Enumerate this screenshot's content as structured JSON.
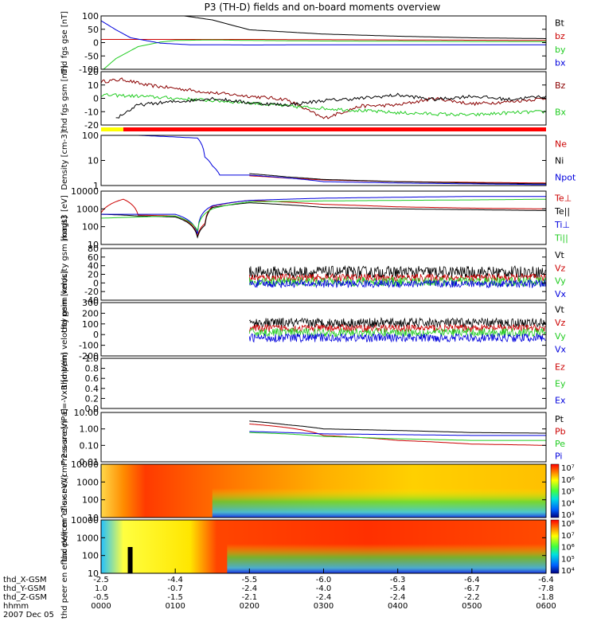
{
  "title": "P3 (TH-D) fields and on-board moments overview",
  "colors": {
    "black": "#000000",
    "red": "#cc0000",
    "darkred": "#8b0000",
    "green": "#22cc22",
    "blue": "#0000dd",
    "yellow": "#ffff00",
    "bar_red": "#ff0000"
  },
  "chart_data": [
    {
      "type": "line",
      "panel": "fgs-gse",
      "ylabel": "thd fgs gse [nT]",
      "yticks": [
        "100",
        "50",
        "0",
        "-50",
        "-100"
      ],
      "ylim": [
        -100,
        100
      ],
      "legend": [
        "Bt",
        "bz",
        "by",
        "bx"
      ],
      "legend_colors": [
        "#000000",
        "#cc0000",
        "#22cc22",
        "#0000dd"
      ],
      "series": [
        {
          "name": "Bt",
          "x": [
            0.42,
            0.6,
            1.0,
            1.5,
            2.0,
            3.0,
            4.0,
            5.0,
            6.0
          ],
          "values": [
            115,
            112,
            105,
            85,
            48,
            32,
            24,
            18,
            15
          ]
        },
        {
          "name": "bz",
          "x": [
            0,
            2,
            4,
            6
          ],
          "values": [
            12,
            12,
            10,
            8
          ]
        },
        {
          "name": "by",
          "x": [
            0,
            0.2,
            0.5,
            0.8,
            1.0,
            1.5,
            2.0,
            3.0,
            4.0,
            5.0,
            6.0
          ],
          "values": [
            -108,
            -60,
            -15,
            2,
            8,
            10,
            8,
            6,
            5,
            4,
            4
          ]
        },
        {
          "name": "bx",
          "x": [
            0,
            0.2,
            0.4,
            0.8,
            1.2,
            1.5,
            2.0,
            3.0,
            4.0,
            5.0,
            6.0
          ],
          "values": [
            82,
            48,
            18,
            -2,
            -8,
            -8,
            -9,
            -8,
            -8,
            -8,
            -8
          ]
        }
      ]
    },
    {
      "type": "line",
      "panel": "fgs-gsm",
      "ylabel": "thd fgs gsm [nT]",
      "yticks": [
        "20",
        "10",
        "0",
        "-10",
        "-20"
      ],
      "ylim": [
        -24,
        24
      ],
      "legend": [
        "Bz",
        "Bx"
      ],
      "legend_colors": [
        "#8b0000",
        "#22cc22"
      ],
      "series": [
        {
          "name": "Bz",
          "x": [
            0,
            0.3,
            0.6,
            1.0,
            1.5,
            2.0,
            2.5,
            3.0,
            3.5,
            4.0,
            4.5,
            5.0,
            5.5,
            6.0
          ],
          "values": [
            15,
            17,
            12,
            9,
            5,
            2,
            -1,
            -18,
            -7,
            -6,
            0,
            -5,
            -3,
            0
          ]
        },
        {
          "name": "Bx",
          "x": [
            0,
            0.5,
            1.0,
            1.5,
            2.0,
            2.5,
            3.0,
            3.5,
            4.0,
            4.5,
            5.0,
            5.5,
            6.0
          ],
          "values": [
            3,
            2,
            0,
            -2,
            -4,
            -7,
            -9,
            -11,
            -13,
            -14,
            -15,
            -13,
            -12
          ]
        },
        {
          "name": "black",
          "x": [
            0.2,
            0.5,
            0.8,
            1.2,
            1.5,
            2.0,
            2.5,
            3.0,
            3.5,
            4.0,
            4.5,
            5.0,
            5.5,
            6.0
          ],
          "values": [
            -18,
            -6,
            -4,
            -2,
            0,
            -4,
            -6,
            -2,
            0,
            3,
            -1,
            2,
            -1,
            2
          ]
        }
      ]
    },
    {
      "type": "line",
      "panel": "density",
      "ylabel": "Density [cm-3]",
      "yscale": "log",
      "yticks": [
        "100",
        "10",
        "1"
      ],
      "ylim": [
        1,
        200
      ],
      "legend": [
        "Ne",
        "Ni",
        "Npot"
      ],
      "legend_colors": [
        "#cc0000",
        "#000000",
        "#0000dd"
      ],
      "series": [
        {
          "name": "Ne",
          "x": [
            2.0,
            2.5,
            3.0,
            4.0,
            5.0,
            6.0
          ],
          "values": [
            2.8,
            2.2,
            1.8,
            1.5,
            1.4,
            1.3
          ]
        },
        {
          "name": "Ni",
          "x": [
            2.0,
            2.5,
            3.0,
            4.0,
            5.0,
            6.0
          ],
          "values": [
            3.5,
            2.5,
            1.9,
            1.5,
            1.3,
            1.2
          ]
        },
        {
          "name": "Npot",
          "x": [
            0.0,
            0.5,
            1.3,
            1.4,
            1.5,
            1.6,
            2.0,
            3.0,
            4.0,
            5.0,
            6.0
          ],
          "values": [
            200,
            200,
            150,
            20,
            8,
            3,
            3,
            1.5,
            1.3,
            1.2,
            1.1
          ]
        }
      ]
    },
    {
      "type": "line",
      "panel": "temperature",
      "ylabel": "magt3 [eV]",
      "yscale": "log",
      "yticks": [
        "10000",
        "1000",
        "100",
        "10"
      ],
      "ylim": [
        10,
        10000
      ],
      "legend": [
        "Te⊥",
        "Te||",
        "Ti⊥",
        "Ti||"
      ],
      "legend_colors": [
        "#cc0000",
        "#000000",
        "#0000dd",
        "#22cc22"
      ],
      "series": [
        {
          "name": "Te⊥",
          "x": [
            0,
            0.3,
            0.5,
            1.0,
            1.3,
            1.4,
            1.5,
            2.0,
            3.0,
            4.0,
            5.0,
            6.0
          ],
          "values": [
            600,
            3500,
            450,
            400,
            30,
            150,
            1400,
            3000,
            1800,
            1300,
            1100,
            1000
          ]
        },
        {
          "name": "Te||",
          "x": [
            0,
            0.3,
            0.5,
            1.0,
            1.3,
            1.4,
            1.5,
            2.0,
            3.0,
            4.0,
            5.0,
            6.0
          ],
          "values": [
            500,
            450,
            400,
            350,
            25,
            120,
            1200,
            2200,
            1200,
            1000,
            900,
            800
          ]
        },
        {
          "name": "Ti⊥",
          "x": [
            0,
            0.5,
            1.0,
            1.3,
            1.5,
            2.0,
            3.0,
            4.0,
            5.0,
            6.0
          ],
          "values": [
            500,
            500,
            500,
            40,
            1500,
            3000,
            4000,
            4500,
            5000,
            5000
          ]
        },
        {
          "name": "Ti||",
          "x": [
            0,
            0.5,
            1.0,
            1.3,
            1.5,
            2.0,
            3.0,
            4.0,
            5.0,
            6.0
          ],
          "values": [
            300,
            350,
            400,
            60,
            1000,
            2500,
            2800,
            3000,
            3200,
            3500
          ]
        }
      ]
    },
    {
      "type": "line",
      "panel": "peim-velocity",
      "ylabel": "thd peim velocity gsm [km/s]",
      "yticks": [
        "80",
        "60",
        "40",
        "20",
        "0",
        "-20",
        "-40"
      ],
      "ylim": [
        -40,
        80
      ],
      "legend": [
        "Vt",
        "Vz",
        "Vy",
        "Vx"
      ],
      "legend_colors": [
        "#000000",
        "#cc0000",
        "#22cc22",
        "#0000dd"
      ],
      "noisy": true,
      "data_start_hours": 2.0,
      "series": [
        {
          "name": "Vt",
          "mean": 25,
          "spread": 14
        },
        {
          "name": "Vz",
          "mean": 12,
          "spread": 9
        },
        {
          "name": "Vy",
          "mean": 3,
          "spread": 11
        },
        {
          "name": "Vx",
          "mean": -2,
          "spread": 9
        }
      ]
    },
    {
      "type": "line",
      "panel": "peir-velocity",
      "ylabel": "thd peim velocity gsm [km/s]",
      "yticks": [
        "300",
        "200",
        "100",
        "0",
        "-100",
        "-200"
      ],
      "ylim": [
        -200,
        300
      ],
      "legend": [
        "Vt",
        "Vz",
        "Vy",
        "Vx"
      ],
      "legend_colors": [
        "#000000",
        "#cc0000",
        "#22cc22",
        "#0000dd"
      ],
      "noisy": true,
      "data_start_hours": 2.0,
      "series": [
        {
          "name": "Vt",
          "mean": 110,
          "spread": 45
        },
        {
          "name": "Vz",
          "mean": 60,
          "spread": 35
        },
        {
          "name": "Vy",
          "mean": 20,
          "spread": 40
        },
        {
          "name": "Vx",
          "mean": -30,
          "spread": 40
        }
      ]
    },
    {
      "type": "line",
      "panel": "efield",
      "ylabel": "E=-VxB [mV/m]",
      "yticks": [
        "1.0",
        "0.8",
        "0.6",
        "0.4",
        "0.2",
        "0.0"
      ],
      "ylim": [
        0,
        1
      ],
      "legend": [
        "Ez",
        "Ey",
        "Ex"
      ],
      "legend_colors": [
        "#cc0000",
        "#22cc22",
        "#0000dd"
      ],
      "series": []
    },
    {
      "type": "line",
      "panel": "pressure",
      "ylabel": "Pressure [nPa]",
      "yscale": "log",
      "yticks": [
        "10.00",
        "1.00",
        "0.10",
        "0.01"
      ],
      "ylim": [
        0.01,
        10
      ],
      "legend": [
        "Pt",
        "Pb",
        "Pe",
        "Pi"
      ],
      "legend_colors": [
        "#000000",
        "#cc0000",
        "#22cc22",
        "#0000dd"
      ],
      "series": [
        {
          "name": "Pt",
          "x": [
            2.0,
            2.5,
            3.0,
            4.0,
            5.0,
            6.0
          ],
          "values": [
            3.0,
            1.8,
            1.0,
            0.8,
            0.6,
            0.55
          ]
        },
        {
          "name": "Pb",
          "x": [
            2.0,
            2.5,
            3.0,
            4.0,
            5.0,
            6.0
          ],
          "values": [
            2.0,
            1.2,
            0.4,
            0.2,
            0.12,
            0.1
          ]
        },
        {
          "name": "Pe",
          "x": [
            2.0,
            2.5,
            3.0,
            4.0,
            5.0,
            6.0
          ],
          "values": [
            0.6,
            0.5,
            0.35,
            0.25,
            0.2,
            0.2
          ]
        },
        {
          "name": "Pi",
          "x": [
            2.0,
            2.5,
            3.0,
            4.0,
            5.0,
            6.0
          ],
          "values": [
            0.7,
            0.6,
            0.5,
            0.45,
            0.4,
            0.4
          ]
        }
      ]
    },
    {
      "type": "heatmap",
      "panel": "peir-spectrogram",
      "ylabel": "thd peir en eflux eV/(cm^2-s-sr-eV)",
      "yticks": [
        "10000",
        "1000",
        "100",
        "10"
      ],
      "colorbar_ticks": [
        "10⁷",
        "10⁶",
        "10⁵",
        "10⁴",
        "10³"
      ]
    },
    {
      "type": "heatmap",
      "panel": "peer-spectrogram",
      "ylabel": "thd peer en eflux eV/(cm^2-s-sr-eV)",
      "yticks": [
        "10000",
        "1000",
        "100",
        "10"
      ],
      "colorbar_ticks": [
        "10⁸",
        "10⁷",
        "10⁶",
        "10⁵",
        "10⁴"
      ]
    }
  ],
  "xaxis": {
    "rows": [
      {
        "label": "thd_X-GSM",
        "values": [
          "-2.5",
          "-4.4",
          "-5.5",
          "-6.0",
          "-6.3",
          "-6.4",
          "-6.4"
        ]
      },
      {
        "label": "thd_Y-GSM",
        "values": [
          "1.0",
          "-0.7",
          "-2.4",
          "-4.0",
          "-5.4",
          "-6.7",
          "-7.8"
        ]
      },
      {
        "label": "thd_Z-GSM",
        "values": [
          "-0.5",
          "-1.5",
          "-2.1",
          "-2.4",
          "-2.4",
          "-2.2",
          "-1.8"
        ]
      },
      {
        "label": "hhmm",
        "values": [
          "0000",
          "0100",
          "0200",
          "0300",
          "0400",
          "0500",
          "0600"
        ]
      }
    ],
    "date": "2007 Dec 05"
  }
}
